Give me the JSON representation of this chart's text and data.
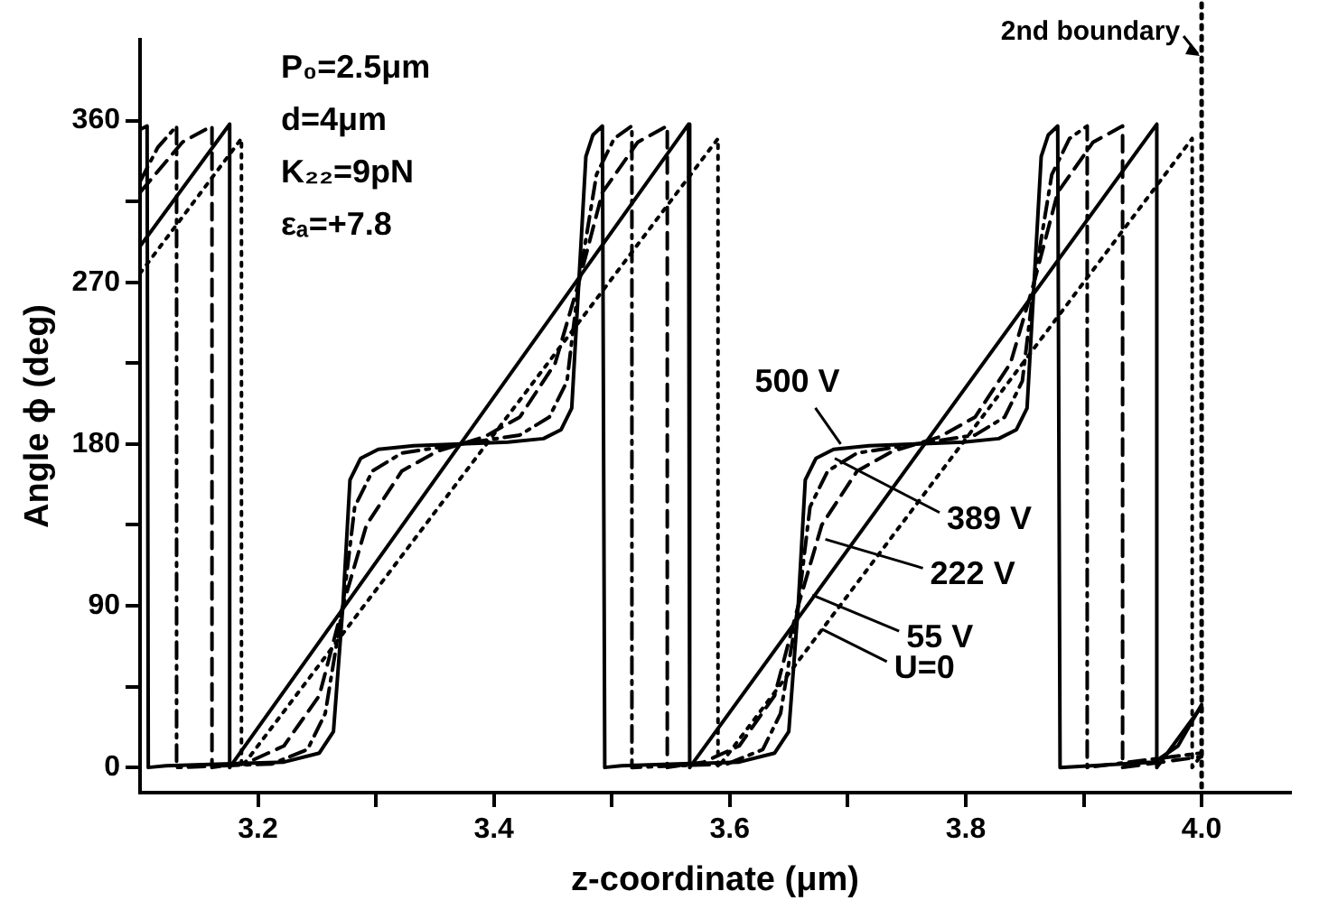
{
  "chart_data": {
    "type": "line",
    "xlabel": "z-coordinate (μm)",
    "ylabel": "Angle ϕ (deg)",
    "xlim": [
      3.1,
      4.075
    ],
    "xticks": [
      3.2,
      {
        "value": 3.3,
        "label": null
      },
      3.4,
      {
        "value": 3.5,
        "label": null
      },
      3.6,
      {
        "value": 3.7,
        "label": null
      },
      3.8,
      {
        "value": 3.9,
        "label": null
      },
      {
        "value": 4.0,
        "label": "4.0"
      }
    ],
    "ylim": [
      -14,
      405
    ],
    "yticks": [
      0,
      {
        "value": 45,
        "label": null
      },
      90,
      {
        "value": 135,
        "label": null
      },
      180,
      {
        "value": 225,
        "label": null
      },
      270,
      {
        "value": 315,
        "label": null
      },
      360
    ],
    "grid": false,
    "legend": false,
    "marker": "none",
    "series": [
      {
        "color": "#000000",
        "line_style": "dotted",
        "x": [
          3.1,
          3.186,
          3.186,
          3.59,
          3.59,
          3.992,
          3.992,
          4.0
        ],
        "values": [
          275,
          350,
          0,
          350,
          0,
          350,
          0,
          7
        ]
      },
      {
        "color": "#000000",
        "line_style": "solid",
        "x": [
          3.1,
          3.176,
          3.176,
          3.565,
          3.566,
          3.962,
          3.962,
          4.0
        ],
        "values": [
          290,
          358,
          0,
          358,
          0,
          358,
          0,
          34
        ]
      },
      {
        "color": "#000000",
        "line_style": "dashed",
        "x": [
          3.1,
          3.136,
          3.161,
          3.161,
          3.192,
          3.222,
          3.252,
          3.272,
          3.292,
          3.322,
          3.352,
          3.372,
          3.392,
          3.422,
          3.452,
          3.472,
          3.492,
          3.522,
          3.547,
          3.547,
          3.578,
          3.608,
          3.638,
          3.658,
          3.678,
          3.708,
          3.738,
          3.758,
          3.778,
          3.808,
          3.838,
          3.858,
          3.878,
          3.908,
          3.933,
          3.933,
          4.0
        ],
        "values": [
          320,
          348,
          357,
          0,
          3,
          12,
          40,
          90,
          135,
          165,
          176,
          180,
          184,
          195,
          225,
          270,
          320,
          348,
          357,
          0,
          3,
          12,
          40,
          90,
          135,
          165,
          176,
          180,
          184,
          195,
          225,
          270,
          320,
          348,
          357,
          0,
          6
        ]
      },
      {
        "color": "#000000",
        "line_style": "dashdot",
        "x": [
          3.1,
          3.115,
          3.131,
          3.131,
          3.212,
          3.242,
          3.257,
          3.272,
          3.282,
          3.297,
          3.322,
          3.372,
          3.422,
          3.447,
          3.462,
          3.472,
          3.487,
          3.502,
          3.517,
          3.517,
          3.598,
          3.628,
          3.643,
          3.658,
          3.668,
          3.683,
          3.708,
          3.758,
          3.808,
          3.833,
          3.848,
          3.858,
          3.873,
          3.888,
          3.903,
          3.903,
          4.0
        ],
        "values": [
          326,
          345,
          357,
          0,
          2,
          10,
          30,
          90,
          145,
          165,
          175,
          180,
          185,
          195,
          215,
          270,
          330,
          350,
          357,
          0,
          2,
          10,
          30,
          90,
          145,
          165,
          175,
          180,
          185,
          195,
          215,
          270,
          330,
          350,
          357,
          0,
          8
        ]
      },
      {
        "color": "#000000",
        "line_style": "solid",
        "x": [
          3.1,
          3.106,
          3.107,
          3.122,
          3.222,
          3.252,
          3.264,
          3.272,
          3.278,
          3.287,
          3.302,
          3.332,
          3.372,
          3.412,
          3.442,
          3.457,
          3.466,
          3.472,
          3.478,
          3.484,
          3.492,
          3.494,
          3.508,
          3.608,
          3.638,
          3.65,
          3.658,
          3.664,
          3.673,
          3.688,
          3.718,
          3.758,
          3.798,
          3.828,
          3.843,
          3.852,
          3.858,
          3.864,
          3.87,
          3.878,
          3.88,
          3.96,
          3.98,
          4.0
        ],
        "values": [
          355,
          357,
          0,
          1,
          3,
          8,
          20,
          90,
          160,
          172,
          177,
          179,
          180,
          181,
          183,
          188,
          200,
          270,
          340,
          352,
          357,
          0,
          1,
          3,
          8,
          20,
          90,
          160,
          172,
          177,
          179,
          180,
          181,
          183,
          188,
          200,
          270,
          340,
          352,
          357,
          0,
          3,
          12,
          35
        ]
      }
    ],
    "ref_lines": [
      {
        "axis": "x",
        "value": 4.0,
        "label": "2nd boundary",
        "line_style": "dotted",
        "color": "#000000"
      }
    ],
    "annotations": [
      "P₀=2.5μm",
      "d=4μm",
      "K₂₂=9pN",
      "εₐ=+7.8",
      {
        "text": "500 V",
        "x": 3.694,
        "y": 180
      },
      {
        "text": "389 V",
        "x": 3.689,
        "y": 172
      },
      {
        "text": "222 V",
        "x": 3.681,
        "y": 127
      },
      {
        "text": "55 V",
        "x": 3.67,
        "y": 96
      },
      {
        "text": "U=0",
        "x": 3.678,
        "y": 77
      }
    ]
  }
}
